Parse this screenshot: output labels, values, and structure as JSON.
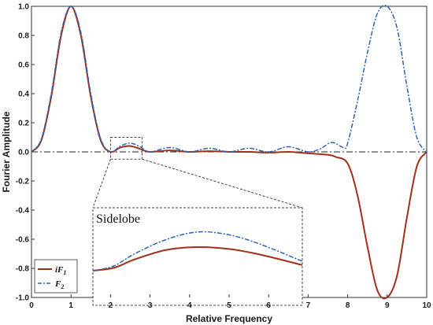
{
  "chart_data": {
    "type": "line",
    "xlabel": "Relative Frequency",
    "ylabel": "Fourier Amplitude",
    "xlim": [
      0,
      10
    ],
    "ylim": [
      -1,
      1
    ],
    "x_ticks": [
      "0",
      "1",
      "2",
      "3",
      "4",
      "5",
      "6",
      "7",
      "8",
      "9",
      "10"
    ],
    "y_ticks": [
      "1.0",
      "0.8",
      "0.6",
      "0.4",
      "0.2",
      "0.0",
      "-0.2",
      "-0.4",
      "-0.6",
      "-0.8",
      "-1.0"
    ],
    "grid": false,
    "legend_position": "bottom-left",
    "series": [
      {
        "name": "iF1",
        "color": "#a0301a",
        "style": "solid",
        "x": [
          0.0,
          0.25,
          0.5,
          0.75,
          1.0,
          1.25,
          1.5,
          1.75,
          2.0,
          2.25,
          2.5,
          2.75,
          3.0,
          3.5,
          4.0,
          4.5,
          5.0,
          5.5,
          6.0,
          6.5,
          7.0,
          7.5,
          7.7,
          8.0,
          8.25,
          8.5,
          8.75,
          9.0,
          9.25,
          9.5,
          9.75,
          10.0
        ],
        "y": [
          0.0,
          0.08,
          0.38,
          0.8,
          1.0,
          0.8,
          0.38,
          0.08,
          0.0,
          0.03,
          0.04,
          0.02,
          0.0,
          0.01,
          0.0,
          0.005,
          0.0,
          0.0,
          -0.005,
          0.0,
          -0.01,
          -0.02,
          -0.035,
          -0.08,
          -0.3,
          -0.65,
          -0.95,
          -1.0,
          -0.85,
          -0.45,
          -0.1,
          0.0
        ]
      },
      {
        "name": "F2",
        "color": "#2e64b4",
        "style": "dashdot",
        "x": [
          0.0,
          0.25,
          0.5,
          0.75,
          1.0,
          1.25,
          1.5,
          1.75,
          2.0,
          2.25,
          2.5,
          2.75,
          3.0,
          3.5,
          4.0,
          4.5,
          5.0,
          5.5,
          6.0,
          6.5,
          7.0,
          7.3,
          7.6,
          7.9,
          8.0,
          8.25,
          8.5,
          8.75,
          9.0,
          9.25,
          9.5,
          9.75,
          10.0
        ],
        "y": [
          0.0,
          0.09,
          0.4,
          0.82,
          1.0,
          0.82,
          0.4,
          0.09,
          0.0,
          0.04,
          0.06,
          0.035,
          0.0,
          0.03,
          0.0,
          0.025,
          0.0,
          0.025,
          0.0,
          0.035,
          0.0,
          0.02,
          0.065,
          0.03,
          0.06,
          0.35,
          0.68,
          0.95,
          1.0,
          0.85,
          0.45,
          0.1,
          0.0
        ]
      }
    ],
    "reference_line": {
      "y": 0.0,
      "style": "dashdot",
      "color": "#222222"
    },
    "zoom_box": {
      "x": [
        2.0,
        2.8
      ],
      "y": [
        -0.05,
        0.1
      ]
    },
    "inset": {
      "title": "Sidelobe",
      "series": [
        {
          "name": "iF1",
          "x": [
            0.0,
            0.1,
            0.2,
            0.35,
            0.5,
            0.65,
            0.8,
            1.0
          ],
          "y": [
            0.0,
            0.03,
            0.12,
            0.22,
            0.25,
            0.23,
            0.17,
            0.06
          ]
        },
        {
          "name": "F2",
          "x": [
            0.0,
            0.1,
            0.2,
            0.35,
            0.5,
            0.65,
            0.8,
            1.0
          ],
          "y": [
            0.0,
            0.05,
            0.18,
            0.33,
            0.41,
            0.38,
            0.28,
            0.1
          ]
        }
      ]
    }
  },
  "legend": {
    "items": [
      {
        "label_main": "iF",
        "label_sub": "1"
      },
      {
        "label_main": "F",
        "label_sub": "2"
      }
    ]
  }
}
